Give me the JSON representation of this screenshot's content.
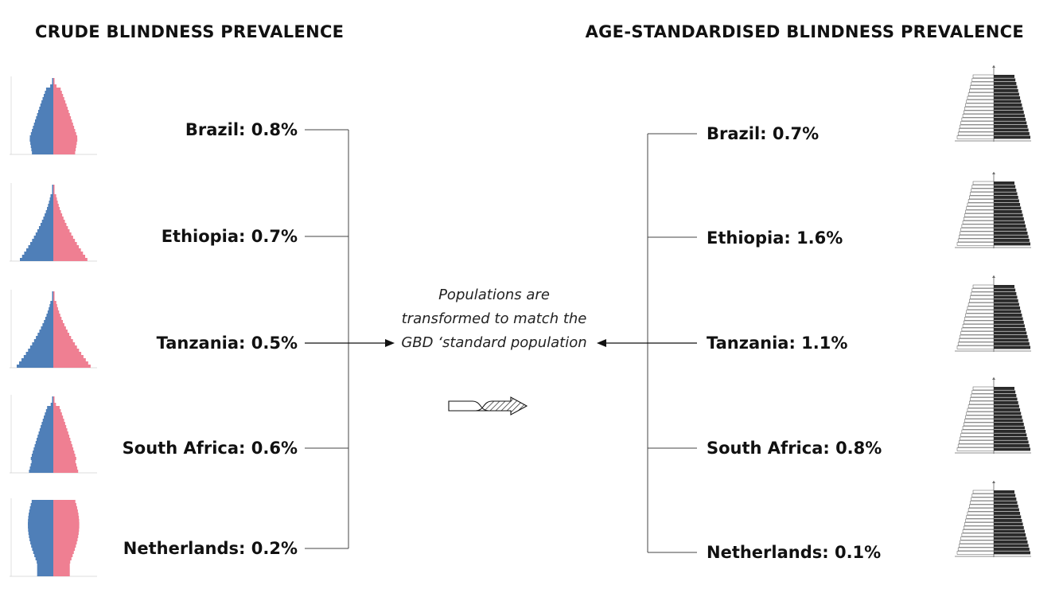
{
  "headings": {
    "crude": "CRUDE BLINDNESS PREVALENCE",
    "standardised": "AGE-STANDARDISED BLINDNESS PREVALENCE"
  },
  "crude": [
    {
      "label": "Brazil: 0.8%"
    },
    {
      "label": "Ethiopia: 0.7%"
    },
    {
      "label": "Tanzania: 0.5%"
    },
    {
      "label": "South Africa: 0.6%"
    },
    {
      "label": "Netherlands: 0.2%"
    }
  ],
  "standardised": [
    {
      "label": "Brazil: 0.7%"
    },
    {
      "label": "Ethiopia: 1.6%"
    },
    {
      "label": "Tanzania: 1.1%"
    },
    {
      "label": "South Africa: 0.8%"
    },
    {
      "label": "Netherlands: 0.1%"
    }
  ],
  "center_note": "Populations are transformed to match the GBD ‘standard population",
  "colors": {
    "male": "#4f7fb8",
    "female": "#ef7f92",
    "standard_female": "#2b2b2b",
    "line": "#444444"
  }
}
